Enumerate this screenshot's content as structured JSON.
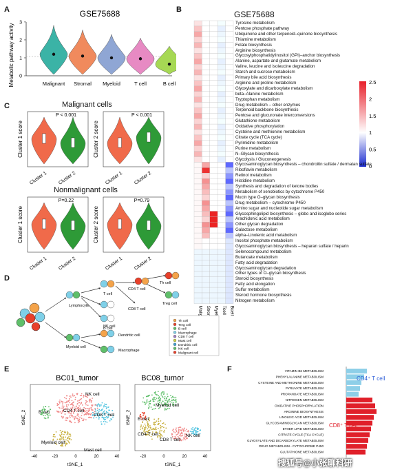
{
  "panels": {
    "A": "A",
    "B": "B",
    "C": "C",
    "D": "D",
    "E": "E",
    "F": "F"
  },
  "panelA": {
    "title": "GSE75688",
    "ylabel": "Metabolic pathway activity",
    "yticks": [
      "0",
      "1",
      "2",
      "3"
    ],
    "groups": [
      {
        "name": "Malignant",
        "color": "#3bb3a6",
        "median": 1.2
      },
      {
        "name": "Stromal",
        "color": "#f08a5d",
        "median": 1.1
      },
      {
        "name": "Myeloid",
        "color": "#8fa6d4",
        "median": 1.0
      },
      {
        "name": "T cell",
        "color": "#e78ac3",
        "median": 0.95
      },
      {
        "name": "B cell",
        "color": "#a6d854",
        "median": 0.65
      }
    ]
  },
  "panelC": {
    "title1": "Malignant cells",
    "title2": "Nonmalignant cells",
    "plots": [
      {
        "ylabel": "Cluster 1 score",
        "p": "P < 0.001"
      },
      {
        "ylabel": "Cluster 2 score",
        "p": "P < 0.001"
      },
      {
        "ylabel": "Cluster 1 score",
        "p": "P=0.22"
      },
      {
        "ylabel": "Cluster 2 score",
        "p": "P=0.79"
      }
    ],
    "xcats": [
      "Cluster 1",
      "Cluster 2"
    ],
    "colors": [
      "#f06a4a",
      "#2e9a37"
    ]
  },
  "panelB": {
    "title": "GSE75688",
    "columns": [
      "Malignant",
      "Stromal",
      "Myeloid",
      "Tcell",
      "Bcell"
    ],
    "legend_ticks": [
      "2.5",
      "2",
      "1.5",
      "1",
      "0.5",
      "0"
    ],
    "pathways": [
      "Tyrosine metabolism",
      "Pentose phosphate pathway",
      "Ubiquinone and other terpenoid–quinone biosynthesis",
      "Thiamine metabolism",
      "Folate biosynthesis",
      "Arginine biosynthesis",
      "Glycosylphosphatidylinositol (GPI)–anchor biosynthesis",
      "Alanine, aspartate and glutamate metabolism",
      "Valine, leucine and isoleucine degradation",
      "Starch and sucrose metabolism",
      "Primary bile acid biosynthesis",
      "Arginine and proline metabolism",
      "Glyoxylate and dicarboxylate metabolism",
      "beta–Alanine metabolism",
      "Tryptophan metabolism",
      "Drug metabolism – other enzymes",
      "Terpenoid backbone biosynthesis",
      "Pentose and glucuronate interconversions",
      "Glutathione metabolism",
      "Oxidative phosphorylation",
      "Cysteine and methionine metabolism",
      "Citrate cycle (TCA cycle)",
      "Pyrimidine metabolism",
      "Purine metabolism",
      "N–Glycan biosynthesis",
      "Glycolysis / Gluconeogenesis",
      "Glycosaminoglycan biosynthesis – chondroitin sulfate / dermatan sulfate",
      "Riboflavin metabolism",
      "Retinol metabolism",
      "Histidine metabolism",
      "Synthesis and degradation of ketone bodies",
      "Metabolism of xenobiotics by cytochrome P450",
      "Mucin type O–glycan biosynthesis",
      "Drug metabolism – cytochrome P450",
      "Amino sugar and nucleotide sugar metabolism",
      "Glycosphingolipid biosynthesis – globo and isoglobo series",
      "Arachidonic acid metabolism",
      "Other glycan degradation",
      "Galactose metabolism",
      "alpha–Linolenic acid metabolism",
      "Inositol phosphate metabolism",
      "Glycosaminoglycan biosynthesis – heparan sulfate / heparin",
      "Selenocompound metabolism",
      "Butanoate metabolism",
      "Fatty acid degradation",
      "Glycosaminoglycan degradation",
      "Other types of O–glycan biosynthesis",
      "Steroid biosynthesis",
      "Fatty acid elongation",
      "Sulfur metabolism",
      "Steroid hormone biosynthesis",
      "Nitrogen metabolism"
    ]
  },
  "panelD": {
    "labels": [
      "T cell",
      "CD4 T cell",
      "Th cell",
      "Treg cell",
      "CD8 T cell",
      "NK cell",
      "B cell",
      "Lymphocyte",
      "Myeloid cell",
      "Dendritic cell",
      "Macrophage"
    ],
    "legend": [
      "Th cell",
      "Treg cell",
      "B cell",
      "Macrophage",
      "CD8 T cell",
      "Mast cell",
      "Dendritic cell",
      "NK cell",
      "Malignant cell"
    ]
  },
  "panelE": {
    "plots": [
      {
        "title": "BC01_tumor",
        "labels": [
          "NK cell",
          "CD4 T cell",
          "CD8 T cell",
          "B cell",
          "Myeloid cell",
          "Mast cell"
        ]
      },
      {
        "title": "BC08_tumor",
        "labels": [
          "Myeloid cell",
          "B cell",
          "CD4 T cell",
          "CD8 T cell",
          "NK cell"
        ]
      }
    ],
    "xlabel": "tSNE_1",
    "ylabel": "tSNE_2",
    "xticks1": [
      "-40",
      "-20",
      "0",
      "20",
      "40"
    ],
    "xticks2": [
      "-20",
      "0",
      "20",
      "40"
    ]
  },
  "panelF": {
    "xlabel": "NES",
    "cd4_label": "CD4⁺ T cell",
    "cd8_label": "CD8⁺ T cell",
    "rows": [
      {
        "name": "VITAMIN B6 METABOLISM",
        "group": "CD4"
      },
      {
        "name": "PHENYLALANINE METABOLISM",
        "group": "CD4"
      },
      {
        "name": "CYSTEINE AND METHIONINE METABOLISM",
        "group": "CD4"
      },
      {
        "name": "PYRUVATE METABOLISM",
        "group": "CD4"
      },
      {
        "name": "PROPANOATE METABOLISM",
        "group": "CD4"
      },
      {
        "name": "NITROGEN METABOLISM",
        "group": "CD8"
      },
      {
        "name": "OXIDATIVE PHOSPHORYLATION",
        "group": "CD8"
      },
      {
        "name": "ARGININE BIOSYNTHESIS",
        "group": "CD8"
      },
      {
        "name": "LINOLEIC ACID METABOLISM",
        "group": "CD8"
      },
      {
        "name": "GLYCOSAMINOGLYCAN METABOLISM",
        "group": "CD8"
      },
      {
        "name": "ETHER LIPID METABOLISM",
        "group": "CD8"
      },
      {
        "name": "CITRATE CYCLE (TCA CYCLE)",
        "group": "CD8"
      },
      {
        "name": "GLYOXYLATE AND DICARBOXYLATE METABOLISM",
        "group": "CD8"
      },
      {
        "name": "DRUG METABOLISM - CYTOCHROME P450",
        "group": "CD8"
      },
      {
        "name": "GLUTATHIONE METABOLISM",
        "group": "CD8"
      }
    ]
  },
  "watermark": "搜狐号@小张聊科研"
}
